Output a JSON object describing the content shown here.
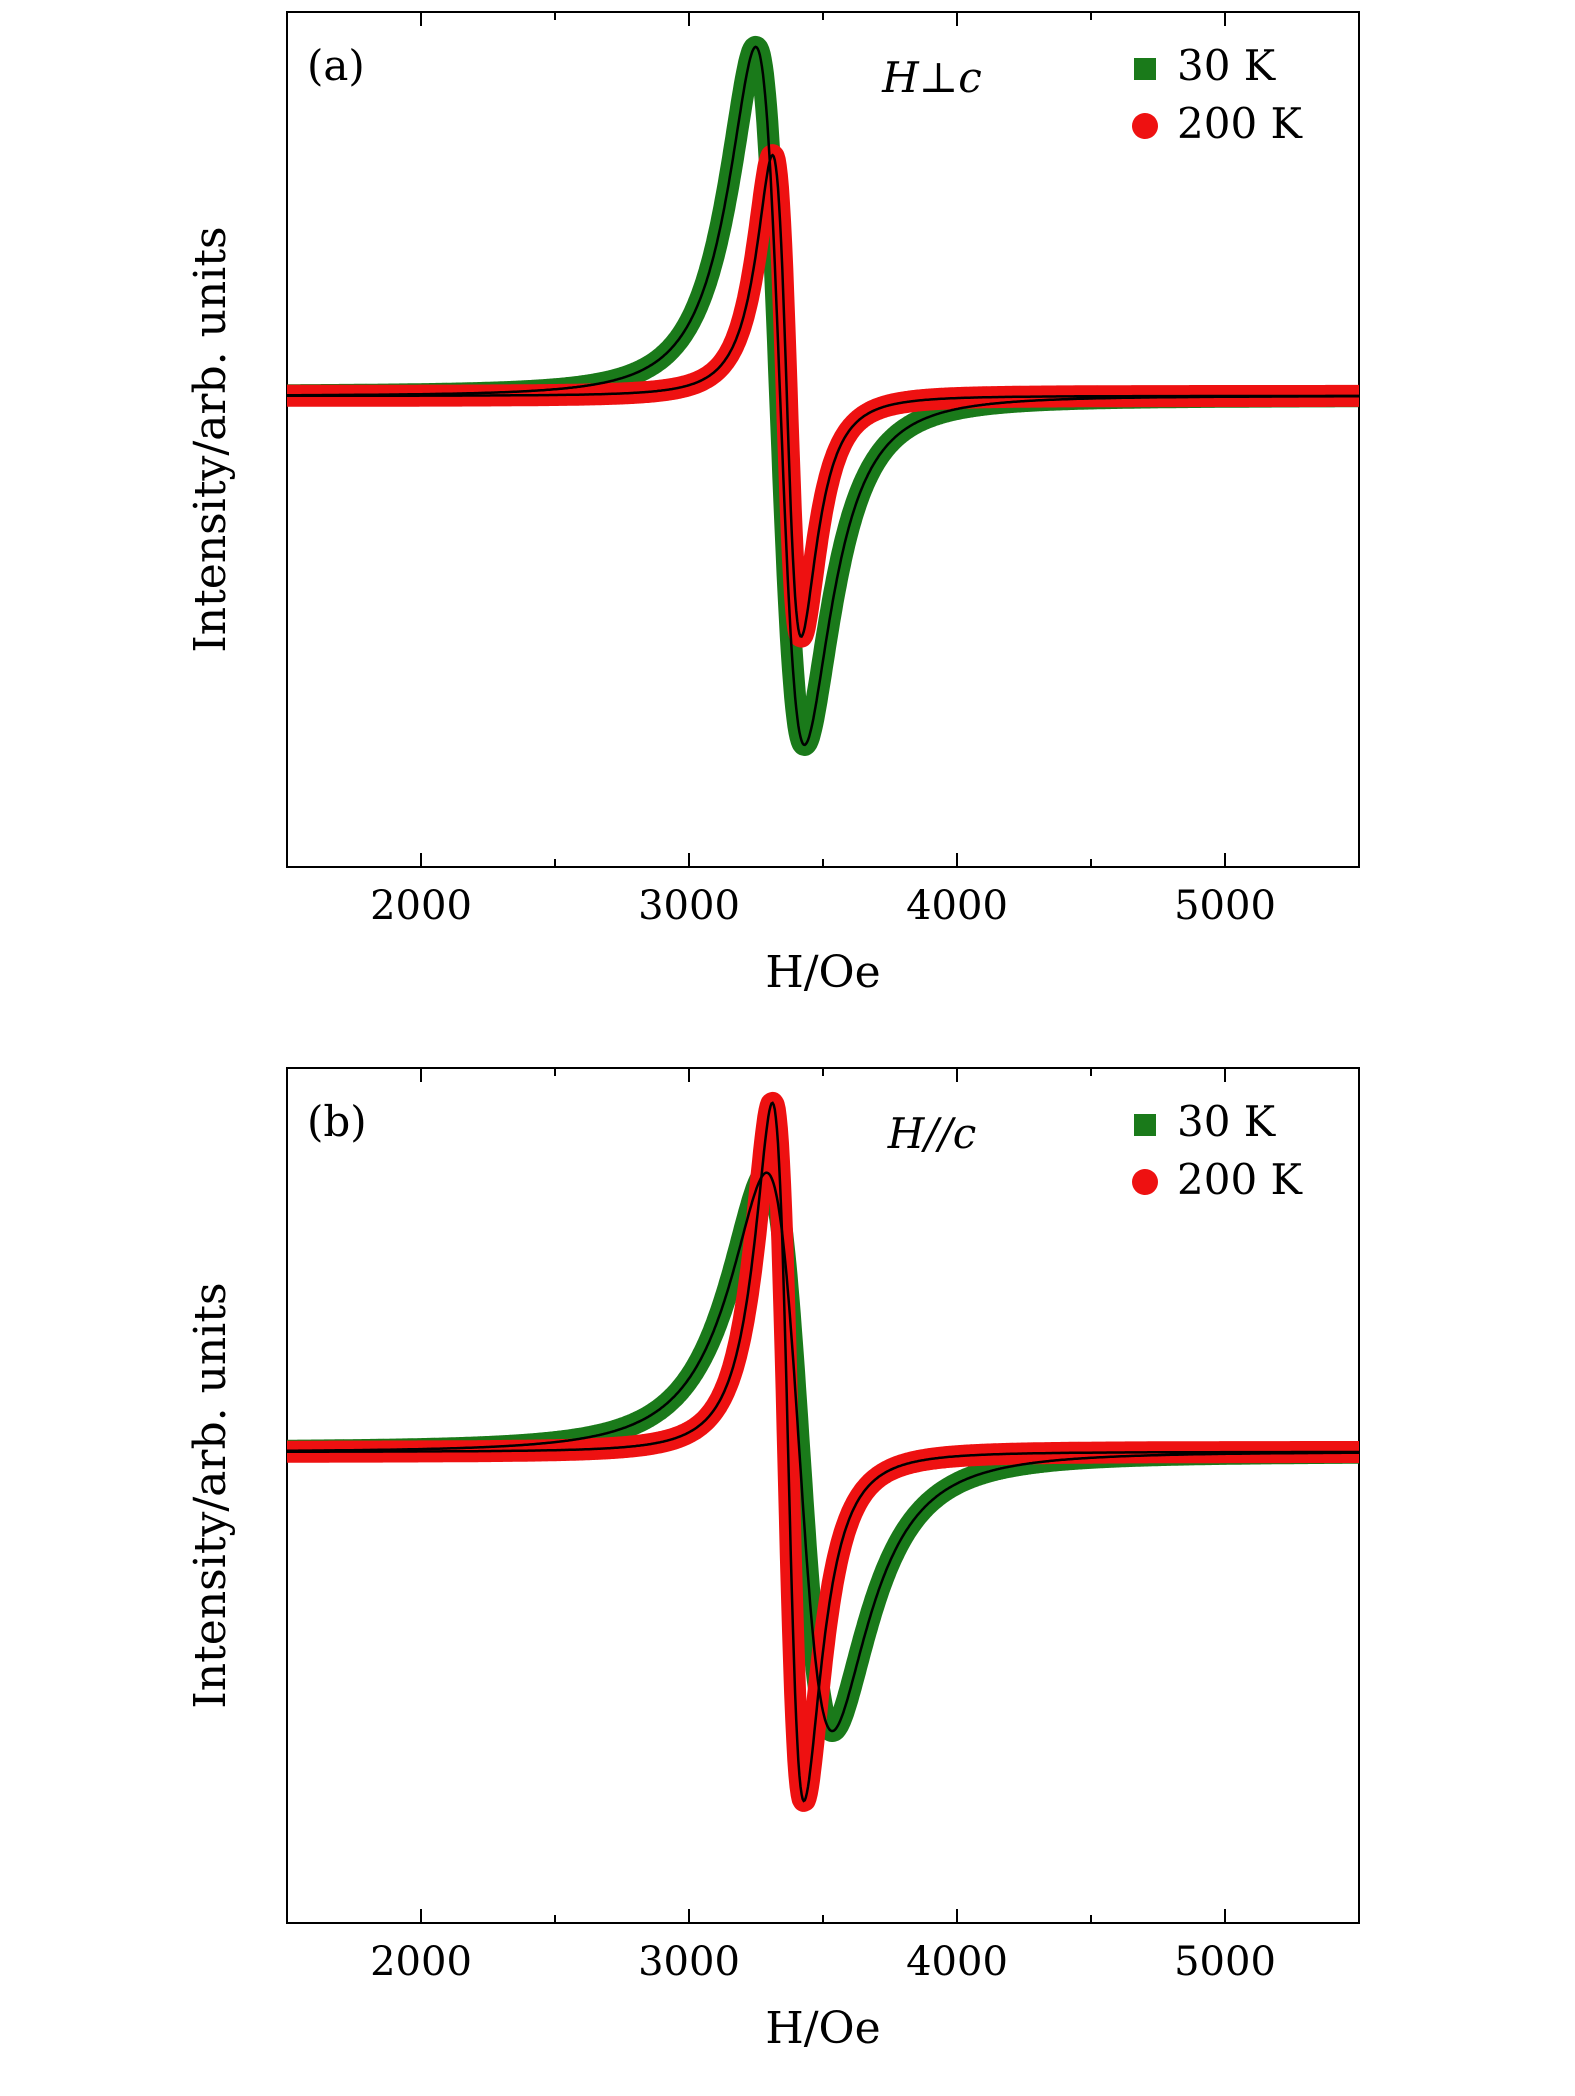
{
  "figure": {
    "panels": [
      {
        "panel_label": "(a)",
        "condition_label": "H⊥c",
        "xlabel": "H/Oe",
        "ylabel": "Intensity/arb. units",
        "legend": [
          {
            "label": "30 K",
            "marker": "square",
            "color": "#1a7a1a"
          },
          {
            "label": "200 K",
            "marker": "circle",
            "color": "#ee1111"
          }
        ]
      },
      {
        "panel_label": "(b)",
        "condition_label": "H//c",
        "xlabel": "H/Oe",
        "ylabel": "Intensity/arb. units",
        "legend": [
          {
            "label": "30 K",
            "marker": "square",
            "color": "#1a7a1a"
          },
          {
            "label": "200 K",
            "marker": "circle",
            "color": "#ee1111"
          }
        ]
      }
    ]
  },
  "chart_data": [
    {
      "type": "line",
      "title": "",
      "panel": "(a)",
      "xlabel": "H/Oe",
      "ylabel": "Intensity/arb. units",
      "xlim": [
        1500,
        5500
      ],
      "ylim": [
        -1.35,
        1.1
      ],
      "x_ticks": [
        2000,
        3000,
        4000,
        5000
      ],
      "x_minor_ticks": [
        2500,
        3500,
        4500
      ],
      "y_ticks_labeled": false,
      "grid": false,
      "legend_position": "top-right",
      "fit_line_color": "#000000",
      "series": [
        {
          "name": "30 K",
          "marker": "square",
          "color": "#1a7a1a",
          "center": 3340,
          "half_width": 182,
          "amplitude": 1.0
        },
        {
          "name": "200 K",
          "marker": "circle",
          "color": "#ee1111",
          "center": 3365,
          "half_width": 107,
          "amplitude": 0.69
        }
      ]
    },
    {
      "type": "line",
      "title": "",
      "panel": "(b)",
      "xlabel": "H/Oe",
      "ylabel": "Intensity/arb. units",
      "xlim": [
        1500,
        5500
      ],
      "ylim": [
        -1.35,
        1.1
      ],
      "x_ticks": [
        2000,
        3000,
        4000,
        5000
      ],
      "x_minor_ticks": [
        2500,
        3500,
        4500
      ],
      "y_ticks_labeled": false,
      "grid": false,
      "legend_position": "top-right",
      "fit_line_color": "#000000",
      "series": [
        {
          "name": "30 K",
          "marker": "square",
          "color": "#1a7a1a",
          "center": 3412,
          "half_width": 245,
          "amplitude": 0.8
        },
        {
          "name": "200 K",
          "marker": "circle",
          "color": "#ee1111",
          "center": 3370,
          "half_width": 118,
          "amplitude": 1.0
        }
      ]
    }
  ]
}
